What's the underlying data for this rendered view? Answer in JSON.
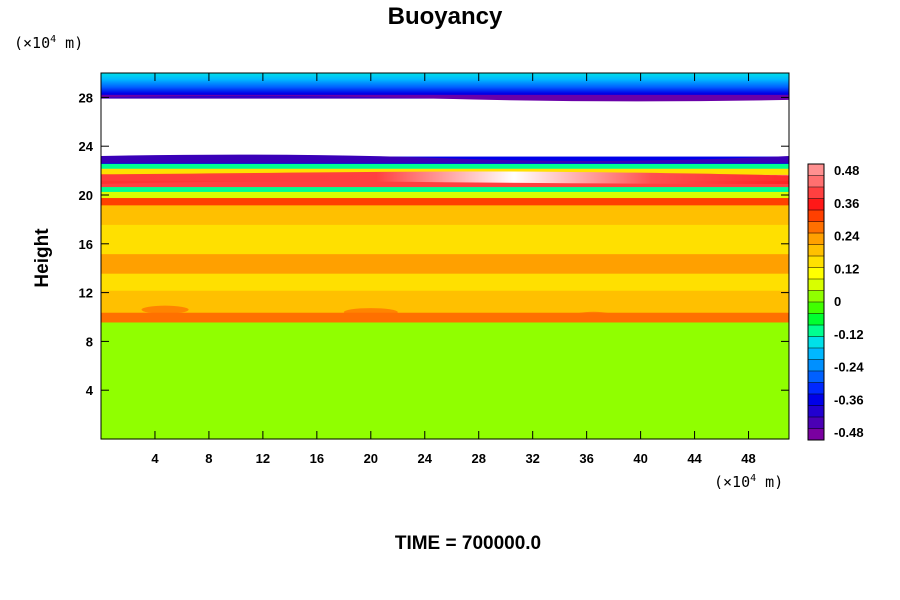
{
  "chart_data": {
    "type": "heatmap",
    "title": "Buoyancy",
    "ylabel": "Height",
    "x_unit": {
      "prefix": "(×10",
      "exp": "4",
      "suffix": " m)"
    },
    "y_unit": {
      "prefix": "(×10",
      "exp": "4",
      "suffix": " m)"
    },
    "xlim": [
      0,
      51
    ],
    "ylim": [
      0,
      30
    ],
    "x_ticks": [
      4,
      8,
      12,
      16,
      20,
      24,
      28,
      32,
      36,
      40,
      44,
      48
    ],
    "y_ticks": [
      4,
      8,
      12,
      16,
      20,
      24,
      28
    ],
    "colorbar": {
      "min": -0.48,
      "max": 0.48,
      "ticks": [
        "0.48",
        "0.36",
        "0.24",
        "0.12",
        "0",
        "-0.12",
        "-0.24",
        "-0.36",
        "-0.48"
      ],
      "colors": [
        "#7a00a0",
        "#4b00b5",
        "#2200d0",
        "#0000e8",
        "#0028ff",
        "#0060ff",
        "#0090ff",
        "#00b8ff",
        "#00e0e8",
        "#00ff90",
        "#00ff30",
        "#40ff00",
        "#90ff00",
        "#d8ff00",
        "#ffff00",
        "#ffe000",
        "#ffc000",
        "#ffa000",
        "#ff7000",
        "#ff4000",
        "#ff1818",
        "#ff4040",
        "#ff7070",
        "#ff9090"
      ]
    },
    "layers": [
      {
        "y_from": 0,
        "y_to": 9.6,
        "value": 0.0
      },
      {
        "y_from": 9.6,
        "y_to": 10.4,
        "value": 0.26
      },
      {
        "y_from": 10.4,
        "y_to": 12.2,
        "value": 0.17
      },
      {
        "y_from": 12.2,
        "y_to": 13.6,
        "value": 0.14
      },
      {
        "y_from": 13.6,
        "y_to": 15.2,
        "value": 0.2
      },
      {
        "y_from": 15.2,
        "y_to": 17.6,
        "value": 0.14
      },
      {
        "y_from": 17.6,
        "y_to": 19.2,
        "value": 0.18
      },
      {
        "y_from": 19.2,
        "y_to": 19.8,
        "value": 0.3
      },
      {
        "y_from": 19.8,
        "y_to": 20.3,
        "value": 0.05
      },
      {
        "y_from": 20.3,
        "y_to": 20.7,
        "value": -0.12
      },
      {
        "y_from": 20.7,
        "y_to": 21.2,
        "value": 0.36
      },
      {
        "y_from": 21.2,
        "y_to": 21.7,
        "value": 0.46
      },
      {
        "y_from": 21.7,
        "y_to": 22.2,
        "value": 0.12
      },
      {
        "y_from": 22.2,
        "y_to": 22.6,
        "value": -0.12
      },
      {
        "y_from": 22.6,
        "y_to": 23.2,
        "value": -0.36
      },
      {
        "y_from": 23.2,
        "y_to": 28.0,
        "value": null
      },
      {
        "y_from": 28.0,
        "y_to": 28.8,
        "value": -0.4
      },
      {
        "y_from": 28.8,
        "y_to": 29.4,
        "value": -0.26
      },
      {
        "y_from": 29.4,
        "y_to": 30.0,
        "value": -0.16
      }
    ]
  },
  "footer": {
    "time_label": "TIME = 700000.0"
  }
}
